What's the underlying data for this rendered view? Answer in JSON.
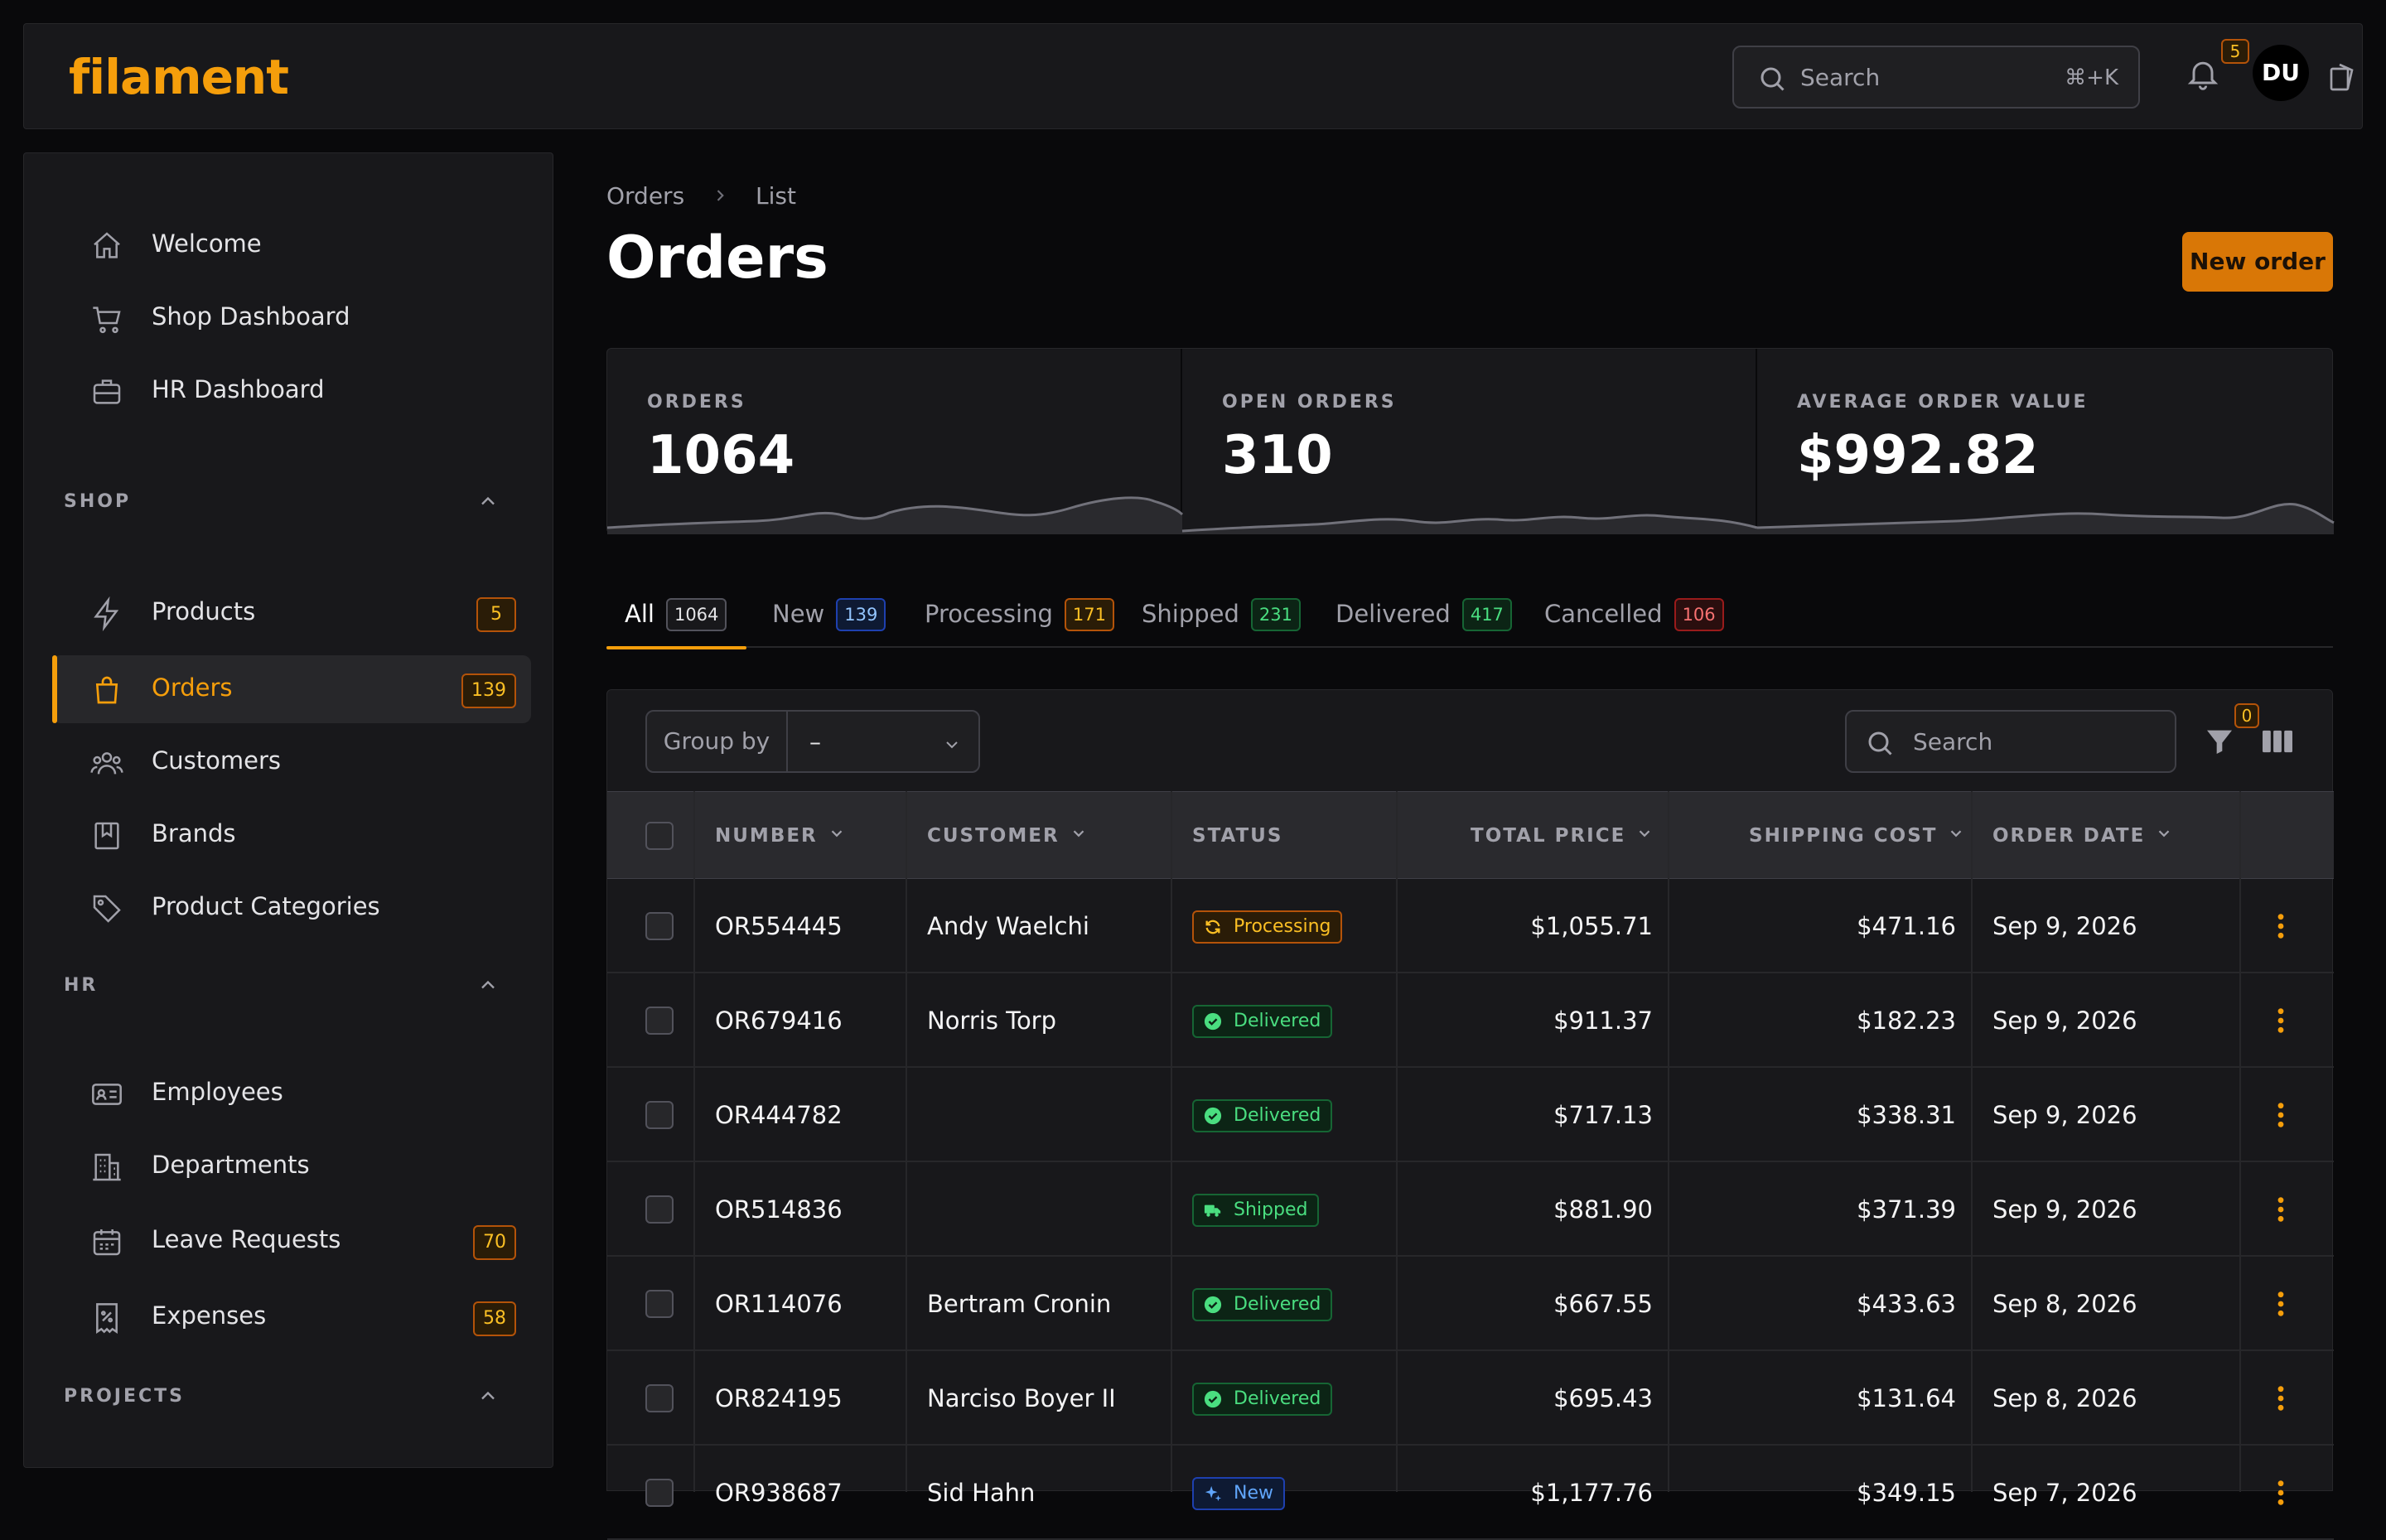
{
  "app": {
    "brand": "filament",
    "search_placeholder": "Search",
    "search_shortcut": "⌘+K",
    "notifications_count": "5",
    "user_initials": "DU"
  },
  "sidebar": {
    "top_items": [
      {
        "label": "Welcome",
        "icon": "home-icon"
      },
      {
        "label": "Shop Dashboard",
        "icon": "cart-icon"
      },
      {
        "label": "HR Dashboard",
        "icon": "briefcase-icon"
      }
    ],
    "groups": [
      {
        "label": "SHOP",
        "items": [
          {
            "label": "Products",
            "icon": "bolt-icon",
            "badge": "5"
          },
          {
            "label": "Orders",
            "icon": "shopping-bag-icon",
            "badge": "139",
            "active": true
          },
          {
            "label": "Customers",
            "icon": "users-icon"
          },
          {
            "label": "Brands",
            "icon": "bookmark-icon"
          },
          {
            "label": "Product Categories",
            "icon": "tag-icon"
          }
        ]
      },
      {
        "label": "HR",
        "items": [
          {
            "label": "Employees",
            "icon": "id-card-icon"
          },
          {
            "label": "Departments",
            "icon": "building-icon"
          },
          {
            "label": "Leave Requests",
            "icon": "calendar-icon",
            "badge": "70"
          },
          {
            "label": "Expenses",
            "icon": "receipt-icon",
            "badge": "58"
          }
        ]
      },
      {
        "label": "PROJECTS",
        "items": []
      }
    ]
  },
  "breadcrumb": [
    "Orders",
    "List"
  ],
  "page": {
    "title": "Orders",
    "new_button": "New order"
  },
  "stats": [
    {
      "label": "ORDERS",
      "value": "1064"
    },
    {
      "label": "OPEN ORDERS",
      "value": "310"
    },
    {
      "label": "AVERAGE ORDER VALUE",
      "value": "$992.82"
    }
  ],
  "tabs": [
    {
      "label": "All",
      "count": "1064",
      "active": true
    },
    {
      "label": "New",
      "count": "139"
    },
    {
      "label": "Processing",
      "count": "171"
    },
    {
      "label": "Shipped",
      "count": "231"
    },
    {
      "label": "Delivered",
      "count": "417"
    },
    {
      "label": "Cancelled",
      "count": "106"
    }
  ],
  "colors": {
    "accent": "#f59e0b",
    "new": "#60a5fa",
    "processing": "#fbbf24",
    "shipped": "#4ade80",
    "delivered": "#4ade80",
    "cancelled": "#f87171"
  },
  "table": {
    "group_by_label": "Group by",
    "group_by_value": "–",
    "search_placeholder": "Search",
    "filter_count": "0",
    "columns": [
      "NUMBER",
      "CUSTOMER",
      "STATUS",
      "TOTAL PRICE",
      "SHIPPING COST",
      "ORDER DATE"
    ],
    "rows": [
      {
        "number": "OR554445",
        "customer": "Andy Waelchi",
        "status": "Processing",
        "total": "$1,055.71",
        "shipping": "$471.16",
        "date": "Sep 9, 2026"
      },
      {
        "number": "OR679416",
        "customer": "Norris Torp",
        "status": "Delivered",
        "total": "$911.37",
        "shipping": "$182.23",
        "date": "Sep 9, 2026"
      },
      {
        "number": "OR444782",
        "customer": "",
        "status": "Delivered",
        "total": "$717.13",
        "shipping": "$338.31",
        "date": "Sep 9, 2026"
      },
      {
        "number": "OR514836",
        "customer": "",
        "status": "Shipped",
        "total": "$881.90",
        "shipping": "$371.39",
        "date": "Sep 9, 2026"
      },
      {
        "number": "OR114076",
        "customer": "Bertram Cronin",
        "status": "Delivered",
        "total": "$667.55",
        "shipping": "$433.63",
        "date": "Sep 8, 2026"
      },
      {
        "number": "OR824195",
        "customer": "Narciso Boyer II",
        "status": "Delivered",
        "total": "$695.43",
        "shipping": "$131.64",
        "date": "Sep 8, 2026"
      },
      {
        "number": "OR938687",
        "customer": "Sid Hahn",
        "status": "New",
        "total": "$1,177.76",
        "shipping": "$349.15",
        "date": "Sep 7, 2026"
      }
    ]
  }
}
